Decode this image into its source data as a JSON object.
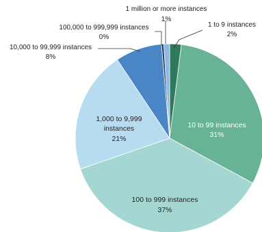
{
  "chart_data": {
    "type": "pie",
    "title": "",
    "slices": [
      {
        "label_line1": "1 to 9 instances",
        "label_line2": "",
        "value_label": "2%",
        "value": 2,
        "color": "#2f7a5e",
        "label_color": "#222222"
      },
      {
        "label_line1": "10 to 99 instances",
        "label_line2": "",
        "value_label": "31%",
        "value": 31,
        "color": "#68b396",
        "label_color": "#ffffff"
      },
      {
        "label_line1": "100 to 999 instances",
        "label_line2": "",
        "value_label": "37%",
        "value": 37,
        "color": "#a4d7d1",
        "label_color": "#222222"
      },
      {
        "label_line1": "1,000 to 9,999",
        "label_line2": "instances",
        "value_label": "21%",
        "value": 21,
        "color": "#b8dcef",
        "label_color": "#222222"
      },
      {
        "label_line1": "10,000 to 99,999 instances",
        "label_line2": "",
        "value_label": "8%",
        "value": 8,
        "color": "#4a86c6",
        "label_color": "#222222"
      },
      {
        "label_line1": "100,000 to 999,999 instances",
        "label_line2": "",
        "value_label": "0%",
        "value": 0.4,
        "color": "#1f3f70",
        "label_color": "#222222"
      },
      {
        "label_line1": "1 million or more instances",
        "label_line2": "",
        "value_label": "1%",
        "value": 1,
        "color": "#8fb8e3",
        "label_color": "#222222"
      }
    ]
  }
}
